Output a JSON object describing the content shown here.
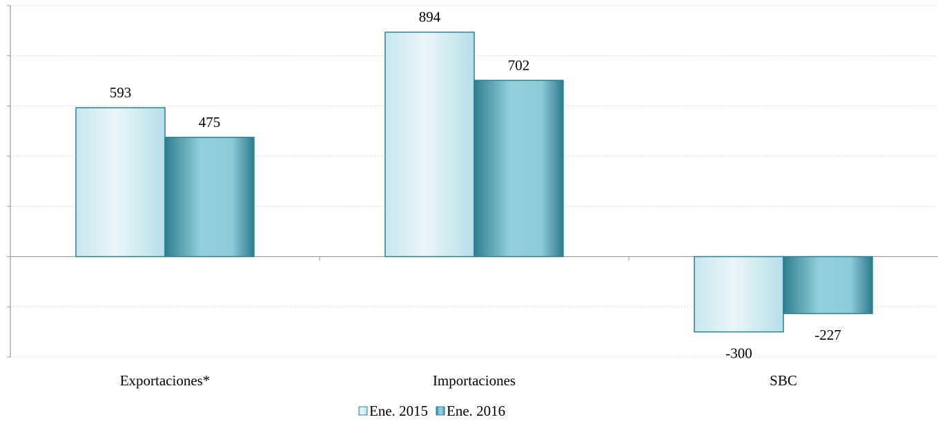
{
  "chart_data": {
    "type": "bar",
    "categories": [
      "Exportaciones*",
      "Importaciones",
      "SBC"
    ],
    "series": [
      {
        "name": "Ene. 2015",
        "values": [
          593,
          894,
          -300
        ]
      },
      {
        "name": "Ene. 2016",
        "values": [
          475,
          702,
          -227
        ]
      }
    ],
    "data_labels": [
      [
        "593",
        "894",
        "-300"
      ],
      [
        "475",
        "702",
        "-227"
      ]
    ],
    "ylim": [
      -400,
      1000
    ],
    "y_gridline_step": 200,
    "grid": true,
    "y_tick_labels_shown": false,
    "legend_position": "bottom-center",
    "colors": {
      "series_2015_light": "#e6f4f8",
      "series_2015_mid": "#c6e6ef",
      "series_2016_dark": "#2f7f93",
      "series_2016_mid": "#93cfdc",
      "bar_border": "#2a7f91",
      "axis": "#9a9a9a",
      "grid": "#d9d9d9"
    }
  }
}
